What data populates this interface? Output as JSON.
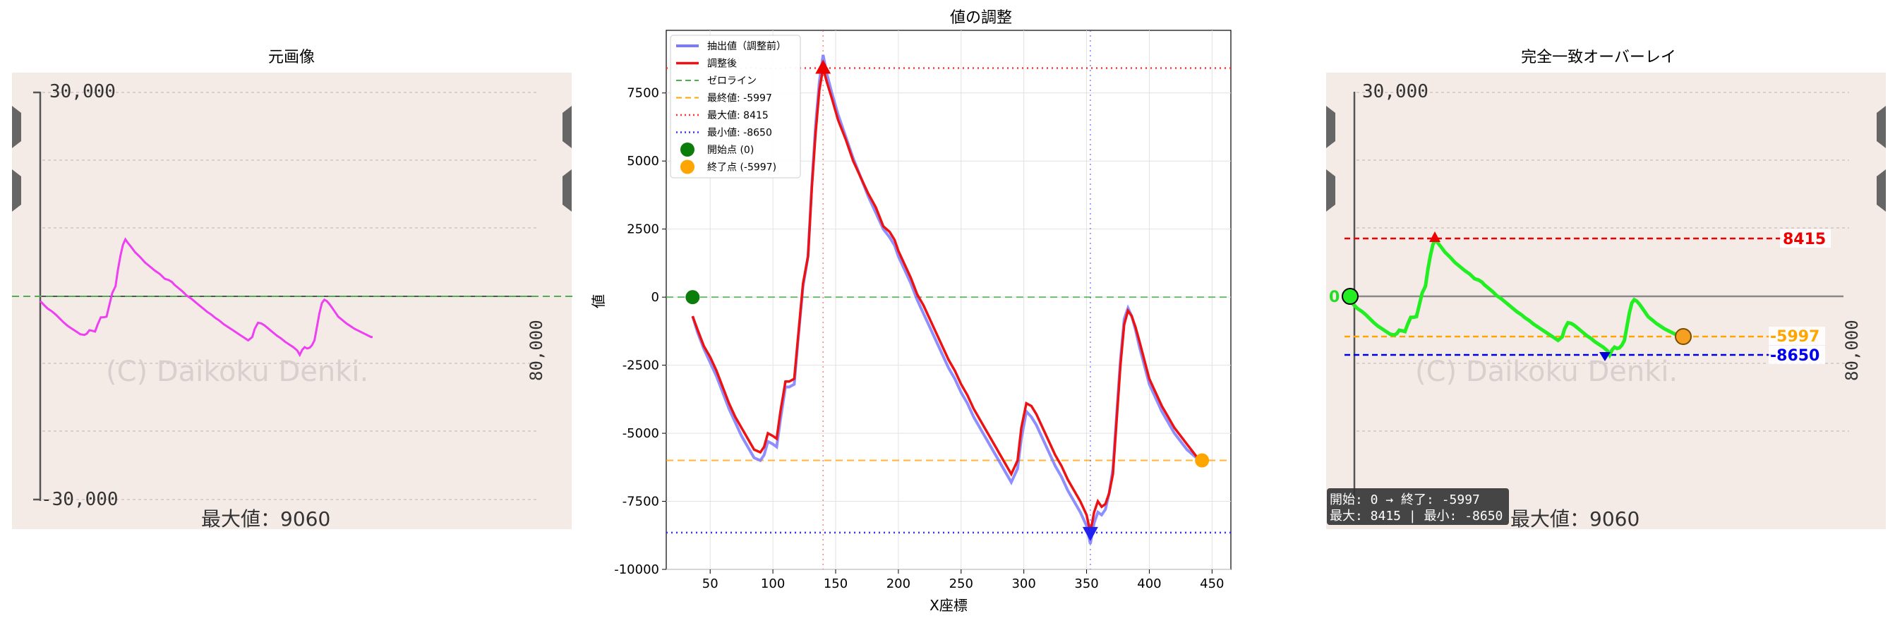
{
  "left_panel": {
    "title": "元画像",
    "tick_top": "30,000",
    "tick_bottom": "-30,000",
    "side_tick": "80,000",
    "watermark": "(C) Daikoku Denki.",
    "footer": "最大値：9060"
  },
  "right_panel": {
    "title": "完全一致オーバーレイ",
    "tick_top": "30,000",
    "side_tick": "80,000",
    "watermark": "(C) Daikoku Denki.",
    "footer": "最大値：9060",
    "label_max": "8415",
    "label_final": "-5997",
    "label_min": "-8650",
    "label_zero": "0",
    "info_line1": "開始: 0 → 終了: -5997",
    "info_line2": "最大: 8415 | 最小: -8650"
  },
  "colors": {
    "photo_bg": "#f4ebe7",
    "magenta_line": "#ee3ff0",
    "green_line": "#22ee22",
    "raw_line": "#7a7aff",
    "adjusted_line": "#ee1111",
    "zero_line": "#4caf50",
    "final_line": "#ffa500",
    "max_line": "#ff3333",
    "min_line": "#3333ff",
    "start_marker": "#0a7d0a",
    "end_marker": "#ffa500"
  },
  "chart_data": {
    "type": "line",
    "title": "値の調整",
    "xlabel": "X座標",
    "ylabel": "値",
    "xlim": [
      15,
      465
    ],
    "ylim": [
      -10000,
      9800
    ],
    "xticks": [
      50,
      100,
      150,
      200,
      250,
      300,
      350,
      400,
      450
    ],
    "yticks": [
      -10000,
      -7500,
      -5000,
      -2500,
      0,
      2500,
      5000,
      7500
    ],
    "grid": true,
    "legend_position": "top-left",
    "legend": [
      "抽出値（調整前）",
      "調整後",
      "ゼロライン",
      "最終値: -5997",
      "最大値: 8415",
      "最小値: -8650",
      "開始点 (0)",
      "終了点 (-5997)"
    ],
    "series": [
      {
        "name": "調整後",
        "x": [
          36,
          40,
          45,
          50,
          55,
          60,
          65,
          70,
          75,
          80,
          85,
          90,
          93,
          96,
          100,
          103,
          106,
          110,
          113,
          117,
          120,
          124,
          128,
          131,
          134,
          137,
          140,
          143,
          147,
          152,
          158,
          164,
          170,
          176,
          182,
          188,
          193,
          197,
          200,
          205,
          210,
          215,
          220,
          225,
          230,
          235,
          240,
          245,
          250,
          255,
          260,
          265,
          270,
          275,
          280,
          285,
          290,
          295,
          298,
          302,
          306,
          310,
          315,
          320,
          325,
          330,
          335,
          340,
          345,
          350,
          353,
          356,
          359,
          362,
          365,
          368,
          371,
          374,
          377,
          380,
          383,
          386,
          389,
          392,
          396,
          400,
          405,
          410,
          415,
          420,
          425,
          430,
          435,
          440,
          442
        ],
        "y": [
          -700,
          -1200,
          -1800,
          -2200,
          -2700,
          -3300,
          -3900,
          -4400,
          -4800,
          -5200,
          -5600,
          -5700,
          -5500,
          -5000,
          -5100,
          -5200,
          -4200,
          -3100,
          -3100,
          -3000,
          -1500,
          500,
          1500,
          4000,
          6000,
          7600,
          8415,
          7900,
          7300,
          6500,
          5800,
          5000,
          4400,
          3800,
          3300,
          2600,
          2400,
          2100,
          1700,
          1200,
          700,
          100,
          -300,
          -800,
          -1300,
          -1800,
          -2300,
          -2700,
          -3200,
          -3600,
          -4100,
          -4500,
          -4900,
          -5300,
          -5700,
          -6100,
          -6500,
          -6000,
          -4800,
          -3900,
          -4000,
          -4300,
          -4800,
          -5300,
          -5800,
          -6200,
          -6700,
          -7100,
          -7500,
          -8000,
          -8650,
          -7900,
          -7500,
          -7700,
          -7600,
          -7200,
          -6500,
          -4500,
          -2500,
          -1000,
          -500,
          -700,
          -1100,
          -1600,
          -2300,
          -3000,
          -3500,
          -4000,
          -4400,
          -4800,
          -5100,
          -5400,
          -5700,
          -5997,
          -5997
        ]
      },
      {
        "name": "抽出値（調整前）",
        "x": [
          36,
          40,
          45,
          50,
          55,
          60,
          65,
          70,
          75,
          80,
          85,
          90,
          93,
          96,
          100,
          103,
          106,
          110,
          113,
          117,
          120,
          124,
          128,
          131,
          134,
          137,
          140,
          143,
          147,
          152,
          158,
          164,
          170,
          176,
          182,
          188,
          193,
          197,
          200,
          205,
          210,
          215,
          220,
          225,
          230,
          235,
          240,
          245,
          250,
          255,
          260,
          265,
          270,
          275,
          280,
          285,
          290,
          295,
          298,
          302,
          306,
          310,
          315,
          320,
          325,
          330,
          335,
          340,
          345,
          350,
          353,
          356,
          359,
          362,
          365,
          368,
          371,
          374,
          377,
          380,
          383,
          386,
          389,
          392,
          396,
          400,
          405,
          410,
          415,
          420,
          425,
          430,
          435,
          440,
          442
        ],
        "y": [
          -700,
          -1300,
          -1900,
          -2400,
          -2900,
          -3500,
          -4100,
          -4600,
          -5100,
          -5500,
          -5900,
          -6000,
          -5800,
          -5300,
          -5400,
          -5500,
          -4500,
          -3300,
          -3300,
          -3200,
          -1600,
          400,
          1500,
          4100,
          6300,
          7900,
          8900,
          8200,
          7500,
          6700,
          5900,
          5100,
          4400,
          3700,
          3100,
          2500,
          2200,
          1900,
          1500,
          1000,
          500,
          -100,
          -600,
          -1100,
          -1600,
          -2100,
          -2600,
          -3000,
          -3500,
          -3900,
          -4400,
          -4800,
          -5200,
          -5600,
          -6000,
          -6400,
          -6800,
          -6300,
          -5200,
          -4200,
          -4400,
          -4700,
          -5200,
          -5700,
          -6200,
          -6600,
          -7100,
          -7500,
          -7900,
          -8400,
          -9060,
          -8300,
          -7900,
          -8000,
          -7800,
          -7200,
          -6300,
          -4300,
          -2300,
          -800,
          -400,
          -700,
          -1200,
          -1800,
          -2500,
          -3200,
          -3700,
          -4200,
          -4600,
          -5000,
          -5300,
          -5600,
          -5800,
          -6000,
          -6000
        ]
      }
    ],
    "reference_lines": {
      "zero": 0,
      "final": -5997,
      "max": 8415,
      "min": -8650,
      "max_x": 140,
      "min_x": 353
    },
    "start_point": [
      36,
      0
    ],
    "end_point": [
      442,
      -5997
    ]
  }
}
